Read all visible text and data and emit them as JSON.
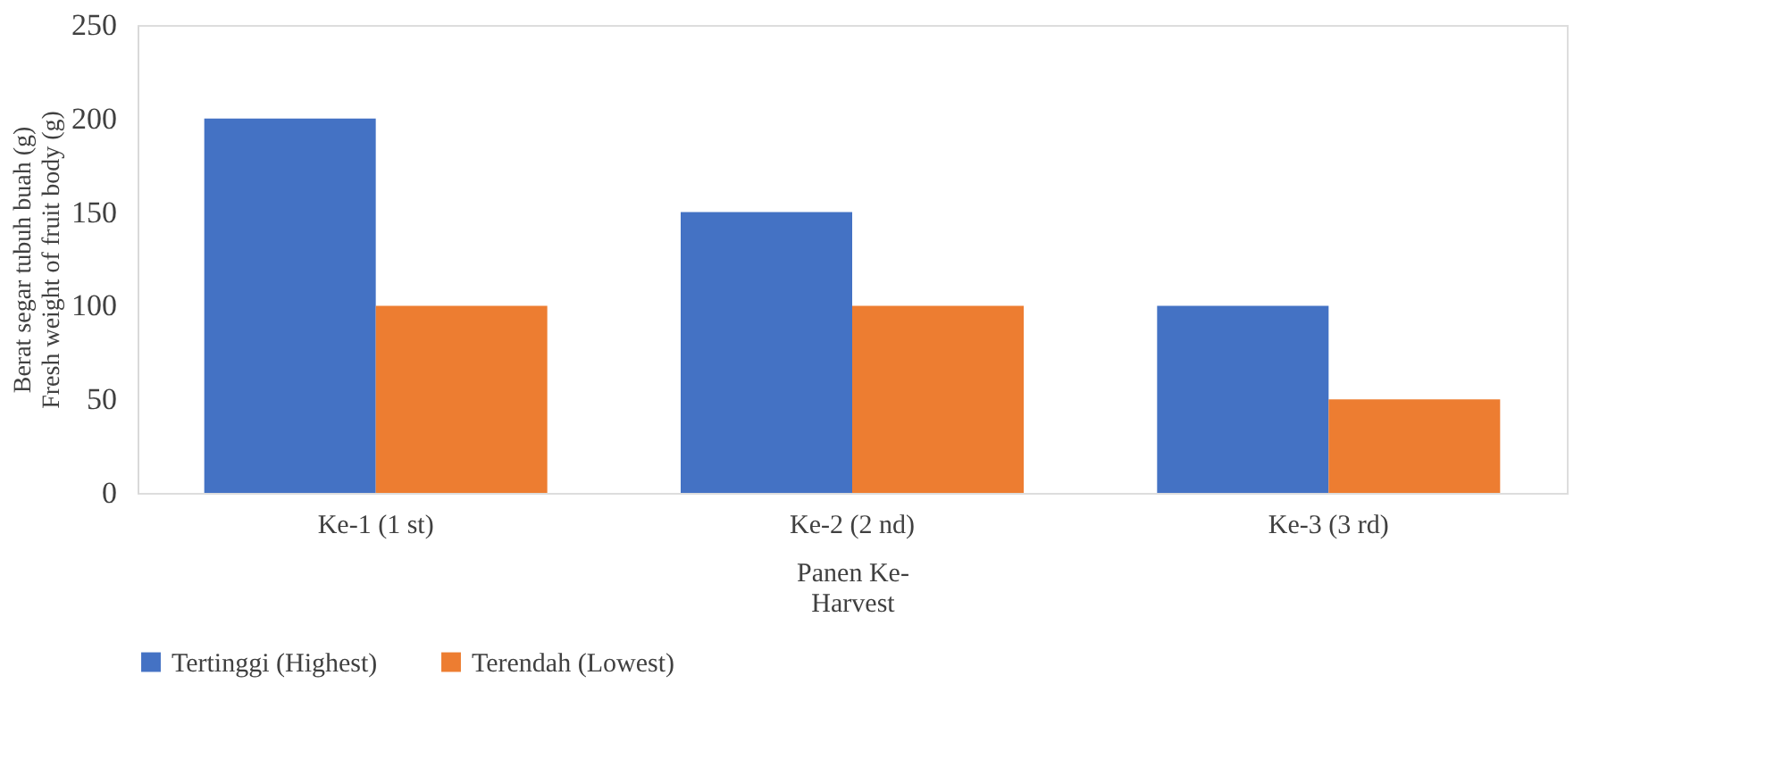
{
  "chart_data": {
    "type": "bar",
    "xlabel": "Panen Ke-\nHarvest",
    "ylabel": "Berat segar tubuh buah (g)\nFresh weight of fruit body (g)",
    "categories": [
      "Ke-1 (1 st)",
      "Ke-2 (2 nd)",
      "Ke-3  (3 rd)"
    ],
    "series": [
      {
        "name": "Tertinggi  (Highest)",
        "color": "#4472c4",
        "values": [
          200,
          150,
          100
        ]
      },
      {
        "name": "Terendah (Lowest)",
        "color": "#ed7d31",
        "values": [
          100,
          100,
          50
        ]
      }
    ],
    "ylim": [
      0,
      250
    ],
    "yticks": [
      0,
      50,
      100,
      150,
      200,
      250
    ],
    "grid": false,
    "legend": "bottom"
  }
}
